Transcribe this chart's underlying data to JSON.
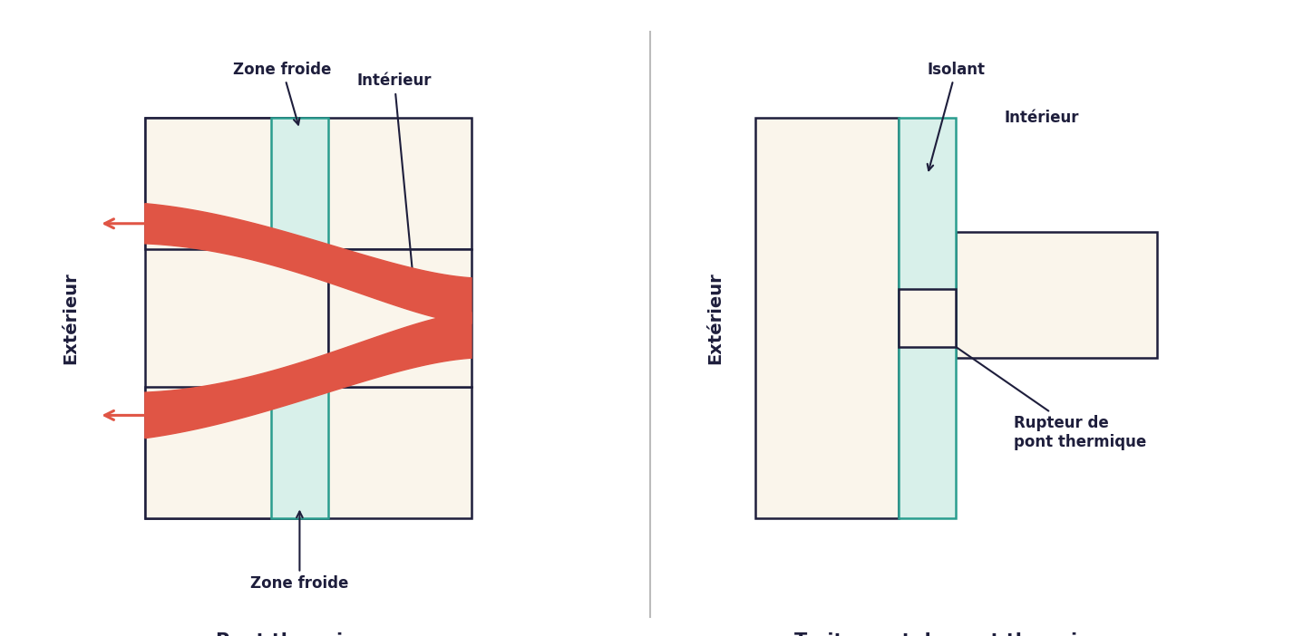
{
  "bg_color": "#ffffff",
  "wall_fill": "#faf5eb",
  "wall_edge": "#1e1e3c",
  "insulation_fill": "#d8f0ea",
  "insulation_edge": "#2a9d8f",
  "heat_color": "#e05545",
  "text_color": "#1e1e3c",
  "divider_color": "#bbbbbb",
  "title1": "Pont thermique",
  "title2": "Traitement de pont thermique",
  "label_exterieur": "Extérieur",
  "label_interieur": "Intérieur",
  "label_zone_froide_top": "Zone froide",
  "label_zone_froide_bot": "Zone froide",
  "label_isolant": "Isolant",
  "label_rupteur": "Rupteur de\npont thermique"
}
